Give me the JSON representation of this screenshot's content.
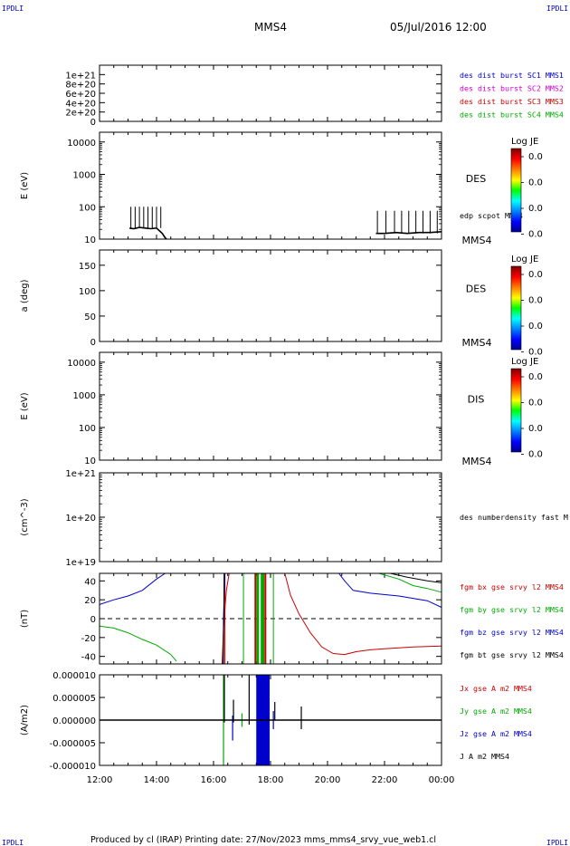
{
  "header": {
    "corner_left": "IPDLI",
    "corner_right": "IPDLI",
    "spacecraft": "MMS4",
    "date": "05/Jul/2016 12:00"
  },
  "footer": {
    "text": "Produced by cl (IRAP)   Printing date: 27/Nov/2023   mms_mms4_srvy_vue_web1.cl",
    "corner_left": "IPDLI",
    "corner_right": "IPDLI"
  },
  "colors": {
    "blue": "#0000cc",
    "magenta": "#cc00cc",
    "red": "#cc0000",
    "green": "#00aa00",
    "black": "#000000"
  },
  "time_axis": {
    "ticks": [
      "12:00",
      "14:00",
      "16:00",
      "18:00",
      "20:00",
      "22:00",
      "00:00"
    ],
    "start_hour": 12,
    "end_hour": 24
  },
  "chart_data": [
    {
      "type": "line",
      "panel": "des dist burst",
      "ylabel": "",
      "ylim": [
        0,
        1.2e+21
      ],
      "yticks": [
        "0",
        "2e+20",
        "4e+20",
        "6e+20",
        "8e+20",
        "1e+21"
      ],
      "ytick_values": [
        0,
        2e+20,
        4e+20,
        6e+20,
        8e+20,
        1e+21
      ],
      "legend": [
        {
          "name": "des dist burst SC1 MMS1",
          "color": "#0000cc"
        },
        {
          "name": "des dist burst SC2 MMS2",
          "color": "#cc00cc"
        },
        {
          "name": "des dist burst SC3 MMS3",
          "color": "#cc0000"
        },
        {
          "name": "des dist burst SC4 MMS4",
          "color": "#00aa00"
        }
      ],
      "dashed_zero": true
    },
    {
      "type": "heatmap",
      "panel": "des energy",
      "ylabel": "E (eV)",
      "scale": "log",
      "ylim": [
        10,
        20000
      ],
      "yticks": [
        "10",
        "100",
        "1000",
        "10000"
      ],
      "ytick_values": [
        10,
        100,
        1000,
        10000
      ],
      "species": "DES",
      "unit": "MMS4",
      "colorbar": {
        "title": "Log JE",
        "labels": [
          "0.0",
          "0.0",
          "0.0",
          "0.0"
        ]
      },
      "overlay_label": "edp scpot MMS4",
      "overlay": [
        {
          "t": [
            13.05,
            13.2,
            13.4,
            13.6,
            13.8,
            14.0,
            14.2,
            14.3,
            14.35
          ],
          "v": [
            22,
            21,
            23,
            22,
            21,
            22,
            15,
            11,
            10
          ]
        },
        {
          "t": [
            21.7,
            22.0,
            22.4,
            22.8,
            23.2,
            23.6,
            24.0
          ],
          "v": [
            15,
            15,
            16,
            15,
            16,
            16,
            17
          ]
        }
      ],
      "overlay_spikes": [
        {
          "t": [
            13.1,
            13.25,
            13.4,
            13.55,
            13.7,
            13.85,
            14.0,
            14.15
          ],
          "v": 100
        },
        {
          "t": [
            21.75,
            22.05,
            22.35,
            22.6,
            22.85,
            23.1,
            23.35,
            23.6,
            23.85
          ],
          "v": 75
        }
      ]
    },
    {
      "type": "heatmap",
      "panel": "des pitch angle",
      "ylabel": "a (deg)",
      "ylim": [
        0,
        180
      ],
      "yticks": [
        "0",
        "50",
        "100",
        "150"
      ],
      "ytick_values": [
        0,
        50,
        100,
        150
      ],
      "species": "DES",
      "unit": "MMS4",
      "colorbar": {
        "title": "Log JE",
        "labels": [
          "0.0",
          "0.0",
          "0.0",
          "0.0"
        ]
      }
    },
    {
      "type": "heatmap",
      "panel": "dis energy",
      "ylabel": "E (eV)",
      "scale": "log",
      "ylim": [
        10,
        20000
      ],
      "yticks": [
        "10",
        "100",
        "1000",
        "10000"
      ],
      "ytick_values": [
        10,
        100,
        1000,
        10000
      ],
      "species": "DIS",
      "unit": "MMS4",
      "colorbar": {
        "title": "Log JE",
        "labels": [
          "0.0",
          "0.0",
          "0.0",
          "0.0"
        ]
      }
    },
    {
      "type": "line",
      "panel": "density",
      "ylabel": "(cm^-3)",
      "scale": "log",
      "ylim": [
        1e+19,
        1e+21
      ],
      "yticks": [
        "1e+19",
        "1e+20",
        "1e+21"
      ],
      "ytick_values": [
        1e+19,
        1e+20,
        1e+21
      ],
      "legend": [
        {
          "name": "des numberdensity fast M",
          "color": "#000000"
        }
      ]
    },
    {
      "type": "line",
      "panel": "fgm",
      "ylabel": "(nT)",
      "ylim": [
        -48,
        48
      ],
      "yticks": [
        "-40",
        "-20",
        "0",
        "20",
        "40"
      ],
      "ytick_values": [
        -40,
        -20,
        0,
        20,
        40
      ],
      "dashed_zero": true,
      "legend": [
        {
          "name": "fgm bx gse srvy l2 MMS4",
          "color": "#cc0000"
        },
        {
          "name": "fgm by gse srvy l2 MMS4",
          "color": "#00aa00"
        },
        {
          "name": "fgm bz gse srvy l2 MMS4",
          "color": "#0000cc"
        },
        {
          "name": "fgm bt gse srvy l2 MMS4",
          "color": "#000000"
        }
      ],
      "series": [
        {
          "name": "fgm bz gse srvy l2 MMS4",
          "color": "#0000cc",
          "t": [
            12.0,
            12.5,
            13.0,
            13.5,
            14.0,
            14.3
          ],
          "v": [
            15,
            20,
            24,
            30,
            42,
            50
          ]
        },
        {
          "name": "fgm bz gse srvy l2 MMS4",
          "color": "#0000cc",
          "t": [
            16.33,
            16.35,
            16.4
          ],
          "v": [
            -48,
            0,
            48
          ]
        },
        {
          "name": "fgm bz gse srvy l2 MMS4",
          "color": "#0000cc",
          "t": [
            20.4,
            20.6,
            20.9,
            21.5,
            22.5,
            23.5,
            24.0
          ],
          "v": [
            48,
            40,
            30,
            27,
            24,
            19,
            12
          ]
        },
        {
          "name": "fgm by gse srvy l2 MMS4",
          "color": "#00aa00",
          "t": [
            12.0,
            12.5,
            13.0,
            13.5,
            14.0,
            14.5,
            14.7
          ],
          "v": [
            -8,
            -10,
            -15,
            -22,
            -28,
            -38,
            -45
          ]
        },
        {
          "name": "fgm by gse srvy l2 MMS4",
          "color": "#00aa00",
          "t": [
            21.8,
            22.5,
            23.0,
            23.5,
            24.0
          ],
          "v": [
            48,
            42,
            35,
            32,
            28
          ]
        },
        {
          "name": "fgm bx gse srvy l2 MMS4",
          "color": "#cc0000",
          "t": [
            16.3,
            16.35,
            16.45,
            16.55
          ],
          "v": [
            -48,
            -10,
            30,
            48
          ]
        },
        {
          "name": "fgm bx gse srvy l2 MMS4",
          "color": "#cc0000",
          "t": [
            18.5,
            18.7,
            19.0,
            19.4,
            19.8,
            20.2,
            20.6,
            21.0,
            21.5,
            22.0,
            23.0,
            24.0
          ],
          "v": [
            48,
            25,
            5,
            -15,
            -30,
            -37,
            -38,
            -35,
            -33,
            -32,
            -30,
            -29
          ]
        },
        {
          "name": "fgm bt gse srvy l2 MMS4",
          "color": "#000000",
          "t": [
            16.35,
            16.37
          ],
          "v": [
            -48,
            48
          ]
        },
        {
          "name": "fgm bt gse srvy l2 MMS4",
          "color": "#000000",
          "t": [
            22.2,
            22.8,
            23.5,
            24.0
          ],
          "v": [
            48,
            44,
            40,
            38
          ]
        }
      ],
      "vlines": [
        {
          "t": 16.4,
          "color": "#cc0000"
        },
        {
          "t": 17.05,
          "color": "#00aa00"
        },
        {
          "t": 17.47,
          "color": "#cc0000",
          "w": 2
        },
        {
          "t": 17.55,
          "color": "#00aa00",
          "w": 3
        },
        {
          "t": 17.72,
          "color": "#00aa00",
          "w": 4
        },
        {
          "t": 17.82,
          "color": "#cc0000",
          "w": 2
        },
        {
          "t": 18.1,
          "color": "#00aa00"
        }
      ]
    },
    {
      "type": "line",
      "panel": "current density",
      "ylabel": "(A/m2)",
      "ylim": [
        -1e-05,
        1e-05
      ],
      "yticks": [
        "-0.000010",
        "-0.000005",
        "0.000000",
        "0.000005",
        "0.000010"
      ],
      "ytick_values": [
        -1e-05,
        -5e-06,
        0,
        5e-06,
        1e-05
      ],
      "legend": [
        {
          "name": "Jx gse A m2 MMS4",
          "color": "#cc0000"
        },
        {
          "name": "Jy gse A m2 MMS4",
          "color": "#00aa00"
        },
        {
          "name": "Jz gse A m2 MMS4",
          "color": "#0000cc"
        },
        {
          "name": "J A m2 MMS4",
          "color": "#000000"
        }
      ],
      "spikes": [
        {
          "t": 16.35,
          "v0": -1e-05,
          "v1": 1e-05,
          "color": "#00aa00"
        },
        {
          "t": 16.38,
          "v0": -5e-07,
          "v1": 1e-05,
          "color": "#000000"
        },
        {
          "t": 16.67,
          "v0": -4.5e-06,
          "v1": 1e-06,
          "color": "#0000cc"
        },
        {
          "t": 16.7,
          "v0": -5e-07,
          "v1": 4.5e-06,
          "color": "#000000"
        },
        {
          "t": 17.0,
          "v0": -1.5e-06,
          "v1": 1.5e-06,
          "color": "#00aa00"
        },
        {
          "t": 17.25,
          "v0": -1e-06,
          "v1": 1e-05,
          "color": "#000000"
        },
        {
          "t": 18.1,
          "v0": -2e-06,
          "v1": 2e-06,
          "color": "#0000cc"
        },
        {
          "t": 18.15,
          "v0": 0,
          "v1": 4e-06,
          "color": "#000000"
        },
        {
          "t": 19.08,
          "v0": -2e-06,
          "v1": 3e-06,
          "color": "#000000"
        }
      ],
      "blocks": [
        {
          "t0": 17.5,
          "t1": 17.97,
          "v0": -1e-05,
          "v1": 1e-05,
          "color": "#0000cc"
        }
      ]
    }
  ]
}
